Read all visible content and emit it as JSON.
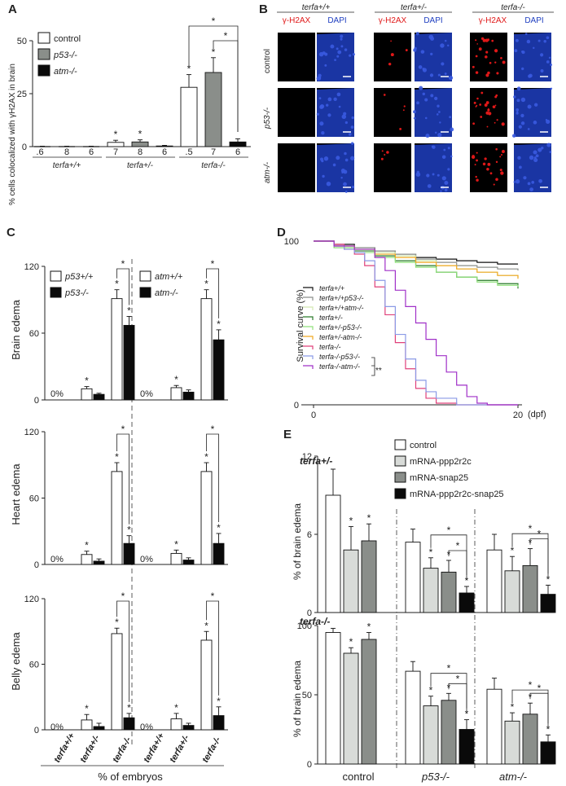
{
  "panels": [
    "A",
    "B",
    "C",
    "D",
    "E"
  ],
  "colors": {
    "control": "#ffffff",
    "p53": "#8a8e8a",
    "atm": "#0a0a0a",
    "light": "#d8dbd8",
    "nuclei": "#1e3ec0",
    "gh2ax": "#e01818",
    "edge": "#111111"
  },
  "panel_a": {
    "ylabel": "% cells colocalized with γH2AX in brain",
    "legend": [
      "control",
      "p53-/-",
      "atm-/-"
    ],
    "groups": [
      "terfa+/+",
      "terfa+/-",
      "terfa-/-"
    ],
    "sig": "*",
    "n_labels": [
      ".6",
      "8",
      "6",
      "7",
      "8",
      "6",
      ".5",
      "7",
      "6"
    ]
  },
  "panel_b": {
    "cols": [
      "terfa+/+",
      "terfa+/-",
      "terfa-/-"
    ],
    "channels": [
      "γ-H2AX",
      "DAPI"
    ],
    "rows": [
      "control",
      "p53-/-",
      "atm-/-"
    ]
  },
  "panel_c": {
    "legend_left": [
      "p53+/+",
      "p53-/-"
    ],
    "legend_right": [
      "atm+/+",
      "atm-/-"
    ],
    "rows": [
      "Brain edema",
      "Heart edema",
      "Belly edema"
    ],
    "zero": "0%",
    "xlabel": "% of embryos",
    "categories": [
      "terfa+/+",
      "terfa+/-",
      "terfa-/-",
      "terfa+/+",
      "terfa+/-",
      "terfa-/-"
    ]
  },
  "panel_d": {
    "ylabel": "Survival curve (%)",
    "unit": "(dpf)",
    "legend": [
      "terfa+/+",
      "terfa+/+p53-/-",
      "terfa+/+atm-/-",
      "terfa+/-",
      "terfa+/-p53-/-",
      "terfa+/-atm-/-",
      "terfa-/-",
      "terfa-/-p53-/-",
      "terfa-/-atm-/-"
    ],
    "sig": "**"
  },
  "panel_e": {
    "legend": [
      "control",
      "mRNA-ppp2r2c",
      "mRNA-snap25",
      "mRNA-ppp2r2c-snap25"
    ],
    "top_title": "terfa+/-",
    "bottom_title": "terfa-/-",
    "ylabel": "% of brain edema",
    "groups": [
      "control",
      "p53-/-",
      "atm-/-"
    ]
  },
  "chart_data": [
    {
      "type": "bar",
      "panel": "A",
      "categories": [
        "terfa+/+",
        "terfa+/-",
        "terfa-/-"
      ],
      "series": [
        {
          "name": "control",
          "values": [
            0.1,
            2.0,
            28
          ],
          "errors": [
            0.1,
            1.0,
            6
          ]
        },
        {
          "name": "p53-/-",
          "values": [
            0.1,
            2.2,
            35
          ],
          "errors": [
            0.1,
            1.0,
            7
          ]
        },
        {
          "name": "atm-/-",
          "values": [
            0.1,
            0.3,
            2.2
          ],
          "errors": [
            0.1,
            0.3,
            1.5
          ]
        }
      ],
      "ylim": [
        0,
        50
      ],
      "yticks": [
        0,
        25,
        50
      ]
    },
    {
      "type": "bar",
      "panel": "C-brain",
      "categories": [
        "terfa+/+",
        "terfa+/-",
        "terfa-/-"
      ],
      "series": [
        {
          "name": "p53+/+",
          "values": [
            0,
            10,
            91
          ],
          "errors": [
            0,
            2,
            8
          ]
        },
        {
          "name": "p53-/-",
          "values": [
            0,
            5,
            67
          ],
          "errors": [
            0,
            1,
            8
          ]
        },
        {
          "name": "atm+/+",
          "values": [
            0,
            11,
            91
          ],
          "errors": [
            0,
            2,
            8
          ]
        },
        {
          "name": "atm-/-",
          "values": [
            0,
            7,
            54
          ],
          "errors": [
            0,
            2,
            9
          ]
        }
      ],
      "ylim": [
        0,
        120
      ],
      "yticks": [
        0,
        60,
        120
      ]
    },
    {
      "type": "bar",
      "panel": "C-heart",
      "categories": [
        "terfa+/+",
        "terfa+/-",
        "terfa-/-"
      ],
      "series": [
        {
          "name": "p53+/+",
          "values": [
            0,
            9,
            84
          ],
          "errors": [
            0,
            3,
            8
          ]
        },
        {
          "name": "p53-/-",
          "values": [
            0,
            3,
            19
          ],
          "errors": [
            0,
            2,
            7
          ]
        },
        {
          "name": "atm+/+",
          "values": [
            0,
            10,
            84
          ],
          "errors": [
            0,
            3,
            8
          ]
        },
        {
          "name": "atm-/-",
          "values": [
            0,
            4,
            19
          ],
          "errors": [
            0,
            2,
            9
          ]
        }
      ],
      "ylim": [
        0,
        120
      ],
      "yticks": [
        0,
        60,
        120
      ]
    },
    {
      "type": "bar",
      "panel": "C-belly",
      "categories": [
        "terfa+/+",
        "terfa+/-",
        "terfa-/-"
      ],
      "series": [
        {
          "name": "p53+/+",
          "values": [
            0,
            9,
            88
          ],
          "errors": [
            0,
            5,
            5
          ]
        },
        {
          "name": "p53-/-",
          "values": [
            0,
            3,
            11
          ],
          "errors": [
            0,
            3,
            4
          ]
        },
        {
          "name": "atm+/+",
          "values": [
            0,
            10,
            82
          ],
          "errors": [
            0,
            5,
            8
          ]
        },
        {
          "name": "atm-/-",
          "values": [
            0,
            4,
            13
          ],
          "errors": [
            0,
            2,
            8
          ]
        }
      ],
      "ylim": [
        0,
        120
      ],
      "yticks": [
        0,
        60,
        120
      ]
    },
    {
      "type": "line",
      "panel": "D",
      "xlim": [
        0,
        20
      ],
      "xticks": [
        0,
        20
      ],
      "ylim": [
        0,
        100
      ],
      "yticks": [
        0,
        100
      ],
      "series": [
        {
          "name": "terfa+/+",
          "color": "#111111",
          "points": [
            [
              0,
              100
            ],
            [
              1,
              100
            ],
            [
              2,
              98
            ],
            [
              4,
              96
            ],
            [
              6,
              94
            ],
            [
              8,
              92
            ],
            [
              10,
              90
            ],
            [
              12,
              89
            ],
            [
              14,
              88
            ],
            [
              16,
              87
            ],
            [
              18,
              86
            ],
            [
              20,
              86
            ]
          ]
        },
        {
          "name": "terfa+/+p53-/-",
          "color": "#8a8e8a",
          "points": [
            [
              0,
              100
            ],
            [
              1,
              100
            ],
            [
              2,
              97
            ],
            [
              4,
              96
            ],
            [
              6,
              94
            ],
            [
              8,
              92
            ],
            [
              10,
              89
            ],
            [
              12,
              87
            ],
            [
              14,
              85
            ],
            [
              16,
              84
            ],
            [
              18,
              83
            ],
            [
              20,
              82
            ]
          ]
        },
        {
          "name": "terfa+/+atm-/-",
          "color": "#d2e8b0",
          "points": [
            [
              0,
              100
            ],
            [
              1,
              100
            ],
            [
              2,
              97
            ],
            [
              4,
              95
            ],
            [
              6,
              93
            ],
            [
              8,
              91
            ],
            [
              10,
              88
            ],
            [
              12,
              85
            ],
            [
              14,
              83
            ],
            [
              16,
              81
            ],
            [
              18,
              79
            ],
            [
              20,
              78
            ]
          ]
        },
        {
          "name": "terfa+/-",
          "color": "#2a7a2a",
          "points": [
            [
              0,
              100
            ],
            [
              1,
              100
            ],
            [
              2,
              96
            ],
            [
              4,
              94
            ],
            [
              6,
              91
            ],
            [
              8,
              88
            ],
            [
              10,
              85
            ],
            [
              12,
              81
            ],
            [
              14,
              78
            ],
            [
              16,
              76
            ],
            [
              18,
              74
            ],
            [
              20,
              71
            ]
          ]
        },
        {
          "name": "terfa+/-p53-/-",
          "color": "#8fe07a",
          "points": [
            [
              0,
              100
            ],
            [
              1,
              100
            ],
            [
              2,
              96
            ],
            [
              4,
              93
            ],
            [
              6,
              90
            ],
            [
              8,
              87
            ],
            [
              10,
              84
            ],
            [
              12,
              81
            ],
            [
              14,
              78
            ],
            [
              16,
              75
            ],
            [
              18,
              73
            ],
            [
              20,
              72
            ]
          ]
        },
        {
          "name": "terfa+/-atm-/-",
          "color": "#f0a820",
          "points": [
            [
              0,
              100
            ],
            [
              1,
              100
            ],
            [
              2,
              97
            ],
            [
              4,
              95
            ],
            [
              6,
              92
            ],
            [
              8,
              90
            ],
            [
              10,
              87
            ],
            [
              12,
              85
            ],
            [
              14,
              83
            ],
            [
              16,
              81
            ],
            [
              18,
              79
            ],
            [
              20,
              77
            ]
          ]
        },
        {
          "name": "terfa-/-",
          "color": "#e0407a",
          "points": [
            [
              0,
              100
            ],
            [
              1,
              100
            ],
            [
              2,
              98
            ],
            [
              3,
              95
            ],
            [
              4,
              92
            ],
            [
              5,
              85
            ],
            [
              6,
              72
            ],
            [
              7,
              55
            ],
            [
              8,
              38
            ],
            [
              9,
              22
            ],
            [
              10,
              10
            ],
            [
              11,
              4
            ],
            [
              12,
              1
            ],
            [
              14,
              0
            ],
            [
              20,
              0
            ]
          ]
        },
        {
          "name": "terfa-/-p53-/-",
          "color": "#8a9ae6",
          "points": [
            [
              0,
              100
            ],
            [
              1,
              100
            ],
            [
              2,
              97
            ],
            [
              3,
              95
            ],
            [
              4,
              93
            ],
            [
              5,
              88
            ],
            [
              6,
              76
            ],
            [
              7,
              60
            ],
            [
              8,
              43
            ],
            [
              9,
              28
            ],
            [
              10,
              15
            ],
            [
              11,
              8
            ],
            [
              12,
              4
            ],
            [
              14,
              0
            ],
            [
              20,
              0
            ]
          ]
        },
        {
          "name": "terfa-/-atm-/-",
          "color": "#a030c8",
          "points": [
            [
              0,
              100
            ],
            [
              1,
              100
            ],
            [
              2,
              97
            ],
            [
              4,
              95
            ],
            [
              6,
              90
            ],
            [
              7,
              82
            ],
            [
              8,
              70
            ],
            [
              9,
              60
            ],
            [
              10,
              50
            ],
            [
              11,
              40
            ],
            [
              12,
              30
            ],
            [
              13,
              20
            ],
            [
              14,
              12
            ],
            [
              15,
              5
            ],
            [
              16,
              1
            ],
            [
              17,
              0
            ],
            [
              20,
              0
            ]
          ]
        }
      ]
    },
    {
      "type": "bar",
      "panel": "E-top",
      "categories": [
        "control",
        "p53-/-",
        "atm-/-"
      ],
      "series": [
        {
          "name": "control",
          "values": [
            9.0,
            5.4,
            4.8
          ],
          "errors": [
            2.0,
            1.0,
            1.2
          ]
        },
        {
          "name": "mRNA-ppp2r2c",
          "values": [
            4.8,
            3.4,
            3.2
          ],
          "errors": [
            1.8,
            0.8,
            1.1
          ]
        },
        {
          "name": "mRNA-snap25",
          "values": [
            5.5,
            3.1,
            3.6
          ],
          "errors": [
            1.3,
            0.9,
            1.3
          ]
        },
        {
          "name": "mRNA-ppp2r2c-snap25",
          "values": [
            0,
            1.5,
            1.4
          ],
          "errors": [
            0,
            0.5,
            0.7
          ]
        }
      ],
      "ylim": [
        0,
        12
      ],
      "yticks": [
        0,
        6,
        12
      ]
    },
    {
      "type": "bar",
      "panel": "E-bottom",
      "categories": [
        "control",
        "p53-/-",
        "atm-/-"
      ],
      "series": [
        {
          "name": "control",
          "values": [
            95,
            67,
            54
          ],
          "errors": [
            3,
            7,
            8
          ]
        },
        {
          "name": "mRNA-ppp2r2c",
          "values": [
            80,
            42,
            31
          ],
          "errors": [
            4,
            7,
            6
          ]
        },
        {
          "name": "mRNA-snap25",
          "values": [
            90,
            46,
            36
          ],
          "errors": [
            5,
            5,
            8
          ]
        },
        {
          "name": "mRNA-ppp2r2c-snap25",
          "values": [
            0,
            25,
            16
          ],
          "errors": [
            0,
            7,
            5
          ]
        }
      ],
      "ylim": [
        0,
        100
      ],
      "yticks": [
        0,
        50,
        100
      ]
    }
  ]
}
